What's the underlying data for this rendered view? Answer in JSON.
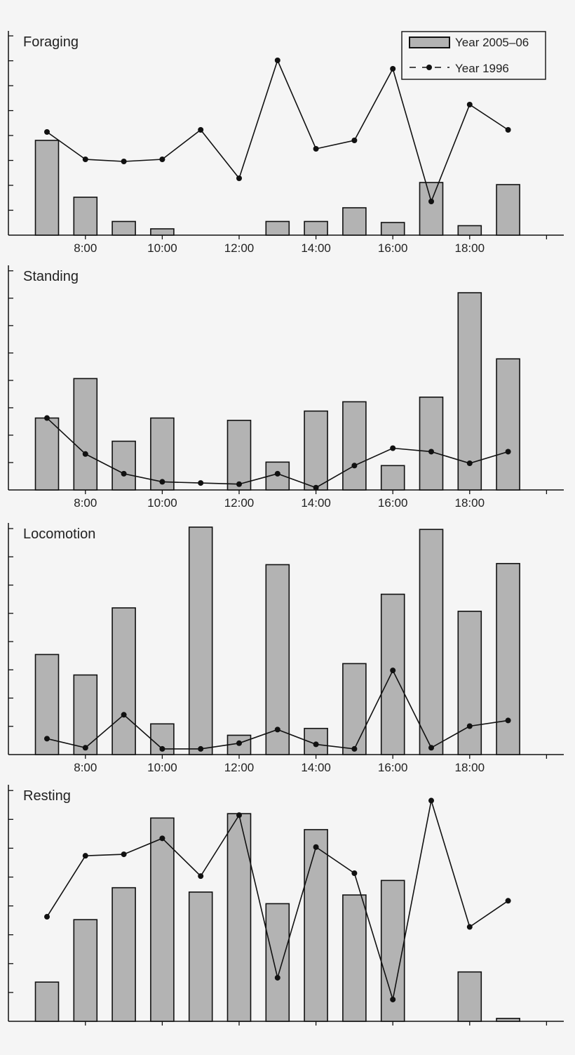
{
  "colors": {
    "background": "#f5f5f5",
    "bar_fill": "#b3b3b3",
    "stroke": "#111111"
  },
  "legend": {
    "items": [
      {
        "label": "Year 2005–06",
        "kind": "bar"
      },
      {
        "label": "Year 1996",
        "kind": "line"
      }
    ]
  },
  "chart_data": [
    {
      "type": "bar",
      "title": "Foraging",
      "x": [
        7,
        8,
        9,
        10,
        11,
        12,
        13,
        14,
        15,
        16,
        17,
        18,
        19
      ],
      "x_tick_labels": [
        "8:00",
        "10:00",
        "12:00",
        "14:00",
        "16:00",
        "18:00"
      ],
      "xlim": [
        6.5,
        20
      ],
      "ylim": [
        0,
        9.5
      ],
      "y_tick_labels": "none",
      "series": [
        {
          "name": "Year 2005–06",
          "type": "bar",
          "values": [
            4.5,
            1.8,
            0.65,
            0.3,
            null,
            null,
            0.65,
            0.65,
            1.3,
            0.6,
            2.5,
            0.45,
            2.4
          ]
        },
        {
          "name": "Year 1996",
          "type": "line",
          "values": [
            4.9,
            3.6,
            3.5,
            3.6,
            5.0,
            2.7,
            8.3,
            4.1,
            4.5,
            7.9,
            1.6,
            6.2,
            5.0
          ]
        }
      ],
      "legend_position": "top-right",
      "grid": false
    },
    {
      "type": "bar",
      "title": "Standing",
      "x": [
        7,
        8,
        9,
        10,
        11,
        12,
        13,
        14,
        15,
        16,
        17,
        18,
        19
      ],
      "x_tick_labels": [
        "8:00",
        "10:00",
        "12:00",
        "14:00",
        "16:00",
        "18:00"
      ],
      "xlim": [
        6.5,
        20
      ],
      "ylim": [
        0,
        9.5
      ],
      "y_tick_labels": "none",
      "series": [
        {
          "name": "Year 2005–06",
          "type": "bar",
          "values": [
            3.1,
            4.8,
            2.1,
            3.1,
            null,
            3.0,
            1.2,
            3.4,
            3.8,
            1.05,
            4.0,
            8.5,
            5.65
          ]
        },
        {
          "name": "Year 1996",
          "type": "line",
          "values": [
            3.1,
            1.55,
            0.7,
            0.35,
            0.3,
            0.25,
            0.7,
            0.1,
            1.05,
            1.8,
            1.65,
            1.15,
            1.65
          ]
        }
      ],
      "grid": false
    },
    {
      "type": "bar",
      "title": "Locomotion",
      "x": [
        7,
        8,
        9,
        10,
        11,
        12,
        13,
        14,
        15,
        16,
        17,
        18,
        19
      ],
      "x_tick_labels": [
        "8:00",
        "10:00",
        "12:00",
        "14:00",
        "16:00",
        "18:00"
      ],
      "xlim": [
        6.5,
        20
      ],
      "ylim": [
        0,
        10
      ],
      "y_tick_labels": "none",
      "series": [
        {
          "name": "Year 2005–06",
          "type": "bar",
          "values": [
            4.4,
            3.5,
            6.45,
            1.35,
            10.0,
            0.85,
            8.35,
            1.15,
            4.0,
            7.05,
            9.9,
            6.3,
            8.4
          ]
        },
        {
          "name": "Year 1996",
          "type": "line",
          "values": [
            0.7,
            0.3,
            1.75,
            0.25,
            0.25,
            0.5,
            1.1,
            0.45,
            0.25,
            3.7,
            0.3,
            1.25,
            1.5
          ]
        }
      ],
      "grid": false
    },
    {
      "type": "bar",
      "title": "Resting",
      "x": [
        7,
        8,
        9,
        10,
        11,
        12,
        13,
        14,
        15,
        16,
        17,
        18,
        19
      ],
      "x_tick_labels": [],
      "xlim": [
        6.5,
        20
      ],
      "ylim": [
        0,
        8
      ],
      "y_tick_labels": "none",
      "series": [
        {
          "name": "Year 2005–06",
          "type": "bar",
          "values": [
            1.35,
            3.5,
            4.6,
            7.0,
            4.45,
            7.15,
            4.05,
            6.6,
            4.35,
            4.85,
            null,
            1.7,
            0.1
          ]
        },
        {
          "name": "Year 1996",
          "type": "line",
          "values": [
            3.6,
            5.7,
            5.75,
            6.3,
            5.0,
            7.1,
            1.5,
            6.0,
            5.1,
            0.75,
            7.6,
            3.25,
            4.15
          ]
        }
      ],
      "grid": false
    }
  ]
}
